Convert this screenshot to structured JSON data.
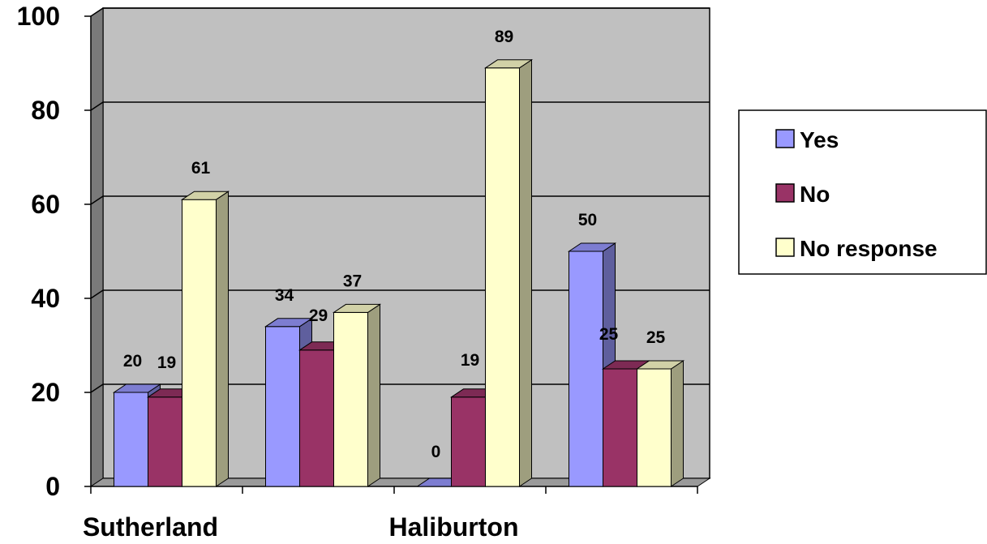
{
  "chart_data": {
    "type": "bar",
    "style": "3d-clustered-column",
    "categories": [
      "Sutherland",
      "",
      "Haliburton",
      ""
    ],
    "series": [
      {
        "name": "Yes",
        "values": [
          20,
          34,
          0,
          50
        ],
        "color": "#9999ff"
      },
      {
        "name": "No",
        "values": [
          19,
          29,
          19,
          25
        ],
        "color": "#993366"
      },
      {
        "name": "No response",
        "values": [
          61,
          37,
          89,
          25
        ],
        "color": "#ffffcc"
      }
    ],
    "ylim": [
      0,
      100
    ],
    "yticks": [
      "0",
      "20",
      "40",
      "60",
      "80",
      "100"
    ],
    "grid": true,
    "legend": "right",
    "wall_color": "#c0c0c0"
  }
}
